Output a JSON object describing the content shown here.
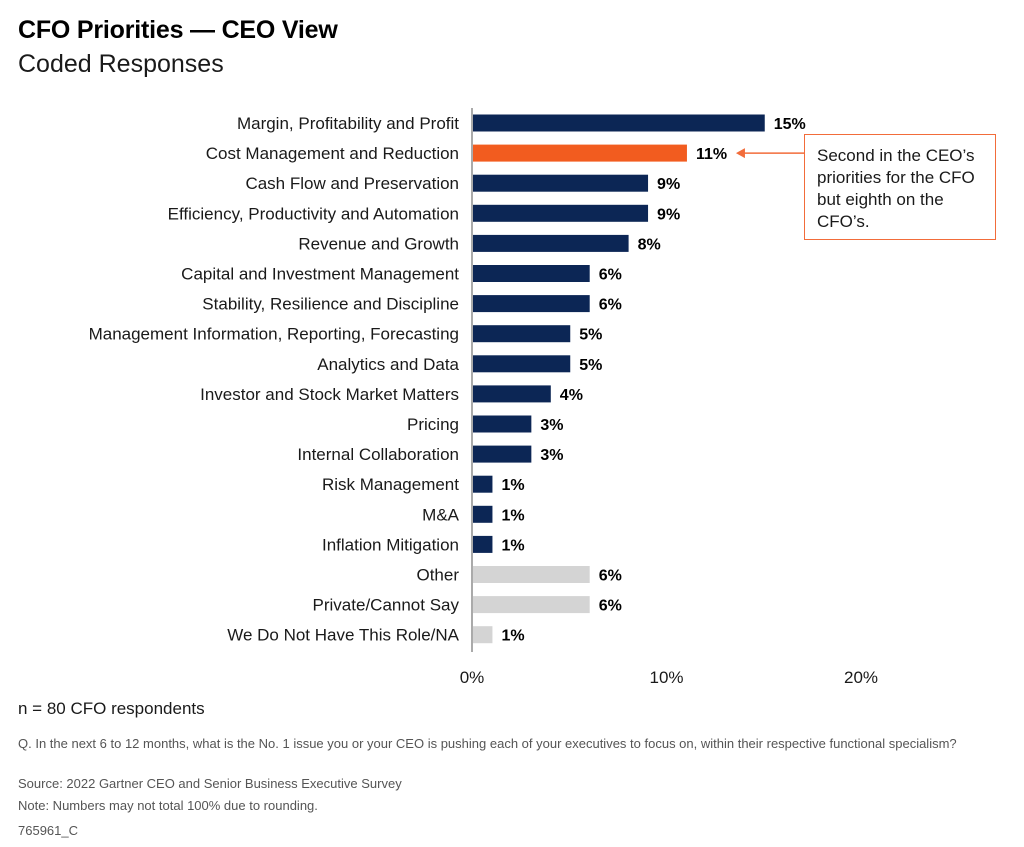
{
  "title": "CFO Priorities — CEO View",
  "subtitle": "Coded Responses",
  "callout_text": "Second in the CEO’s priorities for the CFO but eighth on the CFO’s.",
  "respondents": "n = 80 CFO respondents",
  "question": "Q. In the next 6 to 12 months, what is the No. 1 issue you or your CEO is pushing each of your executives to focus on, within their respective functional specialism?",
  "source": "Source: 2022 Gartner CEO and Senior Business Executive Survey",
  "note": "Note: Numbers may not total 100% due to rounding.",
  "code": "765961_C",
  "colors": {
    "primary": "#0c2655",
    "highlight": "#f25c1f",
    "muted": "#d4d4d4",
    "callout_border": "#f26c3a"
  },
  "chart_data": {
    "type": "bar",
    "orientation": "horizontal",
    "title": "CFO Priorities — CEO View",
    "subtitle": "Coded Responses",
    "xlabel": "",
    "ylabel": "",
    "xlim": [
      0,
      20
    ],
    "xticks": [
      0,
      10,
      20
    ],
    "xtick_labels": [
      "0%",
      "10%",
      "20%"
    ],
    "categories": [
      "Margin, Profitability and Profit",
      "Cost Management and Reduction",
      "Cash Flow and Preservation",
      "Efficiency, Productivity and Automation",
      "Revenue and Growth",
      "Capital and Investment Management",
      "Stability, Resilience and Discipline",
      "Management Information, Reporting, Forecasting",
      "Analytics and Data",
      "Investor and Stock Market Matters",
      "Pricing",
      "Internal Collaboration",
      "Risk Management",
      "M&A",
      "Inflation Mitigation",
      "Other",
      "Private/Cannot Say",
      "We Do Not Have This Role/NA"
    ],
    "values": [
      15,
      11,
      9,
      9,
      8,
      6,
      6,
      5,
      5,
      4,
      3,
      3,
      1,
      1,
      1,
      6,
      6,
      1
    ],
    "value_labels": [
      "15%",
      "11%",
      "9%",
      "9%",
      "8%",
      "6%",
      "6%",
      "5%",
      "5%",
      "4%",
      "3%",
      "3%",
      "1%",
      "1%",
      "1%",
      "6%",
      "6%",
      "1%"
    ],
    "bar_style": [
      "primary",
      "highlight",
      "primary",
      "primary",
      "primary",
      "primary",
      "primary",
      "primary",
      "primary",
      "primary",
      "primary",
      "primary",
      "primary",
      "primary",
      "primary",
      "muted",
      "muted",
      "muted"
    ],
    "annotation": {
      "target_category": "Cost Management and Reduction",
      "text": "Second in the CEO’s priorities for the CFO but eighth on the CFO’s."
    }
  }
}
